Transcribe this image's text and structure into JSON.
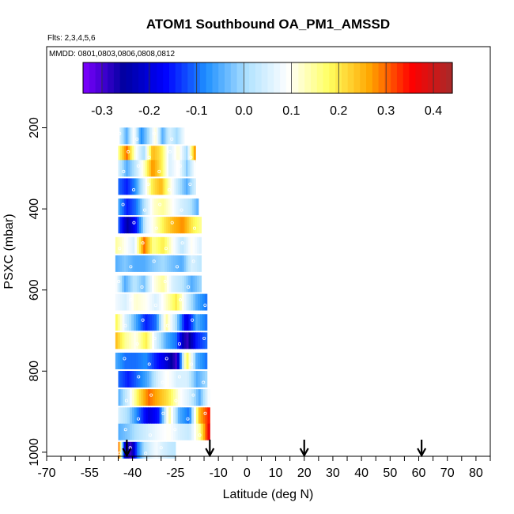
{
  "chart_data": {
    "type": "heatmap",
    "title": "ATOM1 Southbound OA_PM1_AMSSD",
    "flights_note": "Flts: 2,3,4,5,6",
    "dates_note": "MMDD: 0801,0803,0806,0808,0812",
    "xlabel": "Latitude (deg N)",
    "ylabel": "PSXC (mbar)",
    "xlim": [
      -70,
      85
    ],
    "ylim": [
      1010,
      0
    ],
    "x_tick_labels": [
      "-70",
      "-55",
      "-40",
      "-25",
      "-10",
      "0",
      "10",
      "20",
      "30",
      "40",
      "50",
      "60",
      "70",
      "80"
    ],
    "x_tick_values": [
      -70,
      -55,
      -40,
      -25,
      -10,
      0,
      10,
      20,
      30,
      40,
      50,
      60,
      70,
      80
    ],
    "y_tick_labels": [
      "200",
      "400",
      "600",
      "800",
      "1000"
    ],
    "y_tick_values": [
      200,
      400,
      600,
      800,
      1000
    ],
    "colorbar": {
      "range": [
        -0.34,
        0.44
      ],
      "tick_labels": [
        "-0.3",
        "-0.2",
        "-0.1",
        "0.0",
        "0.1",
        "0.2",
        "0.3",
        "0.4"
      ],
      "tick_values": [
        -0.3,
        -0.2,
        -0.1,
        0.0,
        0.1,
        0.2,
        0.3,
        0.4
      ],
      "colors": [
        "#7f00ff",
        "#0000a0",
        "#0000ff",
        "#1e90ff",
        "#b0e2ff",
        "#ffffff",
        "#ffff60",
        "#ffa500",
        "#ff0000",
        "#a52a2a"
      ]
    },
    "profile_arrows_lat": [
      -42,
      -13,
      20,
      61
    ],
    "rows": [
      {
        "p": 220,
        "x0": -44.5,
        "x1": -22,
        "vals": [
          0.05,
          -0.05,
          0.1,
          -0.08,
          0.0,
          0.12,
          -0.05,
          0.05,
          0.0,
          0.08
        ]
      },
      {
        "p": 265,
        "x0": -45,
        "x1": -18,
        "vals": [
          0.15,
          0.3,
          0.1,
          0.0,
          0.25,
          0.2,
          0.05,
          0.12,
          0.0,
          0.3
        ]
      },
      {
        "p": 300,
        "x0": -45,
        "x1": -18,
        "vals": [
          0.05,
          -0.05,
          0.02,
          0.12,
          0.28,
          0.2,
          0.05,
          0.1,
          -0.02,
          0.1
        ]
      },
      {
        "p": 345,
        "x0": -45,
        "x1": -18,
        "vals": [
          -0.1,
          -0.15,
          -0.08,
          0.05,
          0.2,
          0.25,
          0.12,
          0.02,
          -0.05,
          0.05
        ]
      },
      {
        "p": 395,
        "x0": -45,
        "x1": -17,
        "vals": [
          -0.05,
          -0.15,
          -0.1,
          0.02,
          0.12,
          0.15,
          0.1,
          0.05,
          0.02,
          -0.05
        ]
      },
      {
        "p": 440,
        "x0": -45,
        "x1": -16,
        "vals": [
          -0.1,
          -0.25,
          -0.15,
          0.05,
          0.12,
          0.2,
          0.25,
          0.28,
          0.2,
          0.15
        ]
      },
      {
        "p": 490,
        "x0": -46,
        "x1": -16,
        "vals": [
          0.15,
          0.1,
          0.05,
          0.3,
          0.15,
          0.2,
          0.1,
          0.02,
          0.1,
          0.05
        ]
      },
      {
        "p": 535,
        "x0": -46,
        "x1": -16,
        "vals": [
          -0.05,
          -0.02,
          -0.05,
          -0.05,
          -0.02,
          0.0,
          -0.03,
          -0.05,
          0.05,
          0.02
        ]
      },
      {
        "p": 585,
        "x0": -46,
        "x1": -16,
        "vals": [
          0.1,
          -0.05,
          0.02,
          -0.03,
          0.1,
          0.15,
          0.05,
          0.02,
          -0.05,
          0.0
        ]
      },
      {
        "p": 630,
        "x0": -46,
        "x1": -14,
        "vals": [
          0.08,
          0.05,
          0.12,
          0.1,
          0.05,
          0.12,
          0.2,
          0.05,
          -0.05,
          -0.1
        ]
      },
      {
        "p": 680,
        "x0": -46,
        "x1": -14,
        "vals": [
          0.2,
          0.05,
          -0.05,
          -0.15,
          -0.1,
          0.15,
          0.0,
          -0.2,
          -0.05,
          -0.1
        ]
      },
      {
        "p": 725,
        "x0": -46,
        "x1": -14,
        "vals": [
          0.25,
          0.15,
          0.1,
          0.2,
          0.05,
          -0.05,
          -0.1,
          -0.3,
          -0.15,
          -0.1
        ]
      },
      {
        "p": 775,
        "x0": -46,
        "x1": -14,
        "vals": [
          -0.05,
          -0.1,
          -0.1,
          -0.08,
          -0.15,
          -0.2,
          -0.3,
          0.2,
          -0.05,
          -0.1
        ]
      },
      {
        "p": 820,
        "x0": -45,
        "x1": -14,
        "vals": [
          -0.1,
          -0.15,
          -0.1,
          -0.05,
          0.05,
          0.1,
          0.05,
          0.05,
          -0.05,
          0.0
        ]
      },
      {
        "p": 865,
        "x0": -45,
        "x1": -13,
        "vals": [
          -0.05,
          0.05,
          0.2,
          0.3,
          0.25,
          0.2,
          0.1,
          0.05,
          -0.05,
          0.1
        ]
      },
      {
        "p": 910,
        "x0": -45,
        "x1": -13,
        "vals": [
          0.05,
          0.0,
          -0.1,
          -0.2,
          -0.15,
          0.15,
          -0.05,
          -0.1,
          0.25,
          0.35
        ]
      },
      {
        "p": 950,
        "x0": -45,
        "x1": -13,
        "vals": [
          -0.05,
          -0.02,
          0.02,
          0.05,
          0.08,
          0.1,
          0.05,
          0.03,
          0.15,
          0.4
        ]
      },
      {
        "p": 995,
        "x0": -45,
        "x1": -25,
        "vals": [
          0.35,
          -0.2,
          -0.3,
          -0.1,
          0.0,
          0.05,
          0.08,
          0.05,
          0.03,
          0.02
        ]
      }
    ]
  }
}
